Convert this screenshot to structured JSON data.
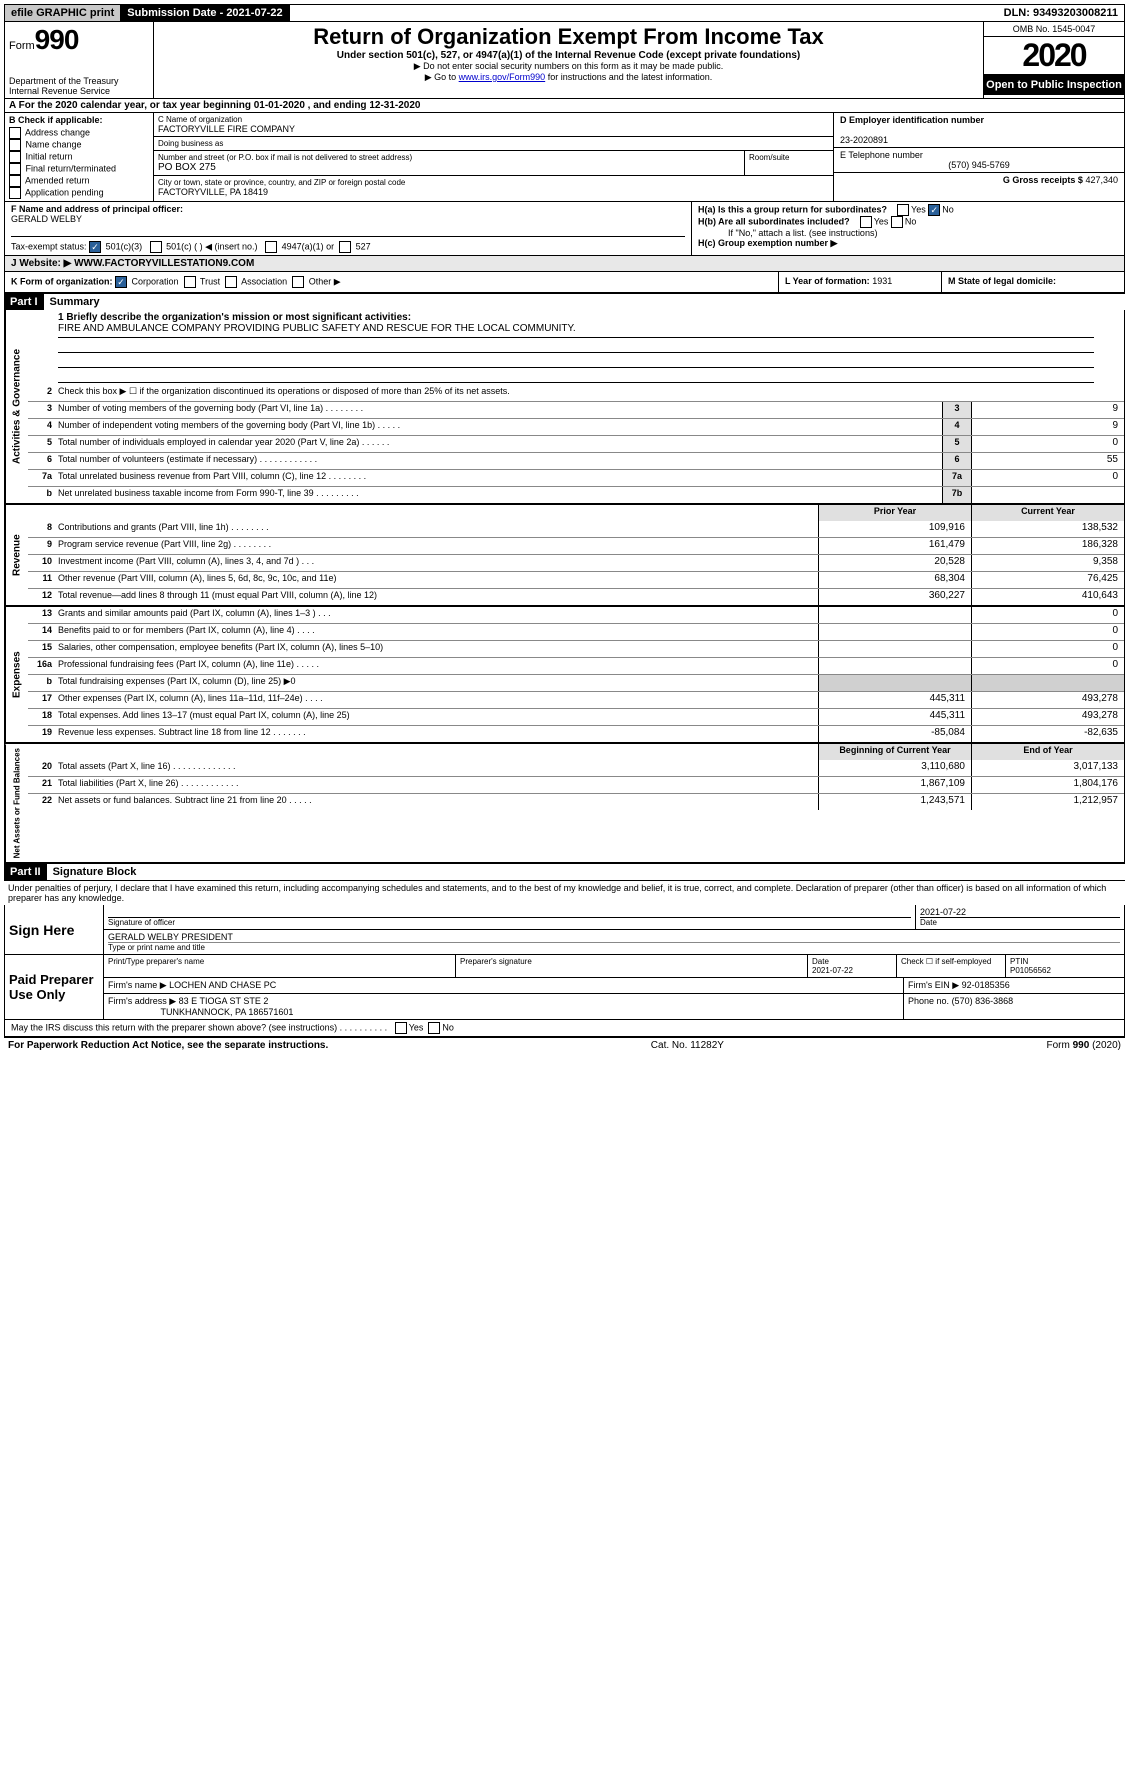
{
  "topbar": {
    "efile": "efile GRAPHIC print",
    "submission_label": "Submission Date - 2021-07-22",
    "dln": "DLN: 93493203008211"
  },
  "header": {
    "form_prefix": "Form",
    "form_number": "990",
    "dept": "Department of the Treasury\nInternal Revenue Service",
    "title": "Return of Organization Exempt From Income Tax",
    "subtitle": "Under section 501(c), 527, or 4947(a)(1) of the Internal Revenue Code (except private foundations)",
    "note1": "▶ Do not enter social security numbers on this form as it may be made public.",
    "note2_pre": "▶ Go to ",
    "note2_link": "www.irs.gov/Form990",
    "note2_post": " for instructions and the latest information.",
    "omb": "OMB No. 1545-0047",
    "year": "2020",
    "open": "Open to Public Inspection"
  },
  "line_a": "A For the 2020 calendar year, or tax year beginning 01-01-2020   , and ending 12-31-2020",
  "col_b": {
    "title": "B Check if applicable:",
    "items": [
      "Address change",
      "Name change",
      "Initial return",
      "Final return/terminated",
      "Amended return",
      "Application pending"
    ]
  },
  "col_c": {
    "name_label": "C Name of organization",
    "name": "FACTORYVILLE FIRE COMPANY",
    "dba_label": "Doing business as",
    "dba": "",
    "addr_label": "Number and street (or P.O. box if mail is not delivered to street address)",
    "room_label": "Room/suite",
    "addr": "PO BOX 275",
    "city_label": "City or town, state or province, country, and ZIP or foreign postal code",
    "city": "FACTORYVILLE, PA  18419"
  },
  "col_de": {
    "d_label": "D Employer identification number",
    "ein": "23-2020891",
    "e_label": "E Telephone number",
    "phone": "(570) 945-5769",
    "g_label": "G Gross receipts $",
    "gross": "427,340"
  },
  "row_f": {
    "label": "F Name and address of principal officer:",
    "name": "GERALD WELBY"
  },
  "row_h": {
    "a": "H(a)  Is this a group return for subordinates?",
    "b": "H(b)  Are all subordinates included?",
    "b_note": "If \"No,\" attach a list. (see instructions)",
    "c": "H(c)  Group exemption number ▶"
  },
  "row_i": {
    "label": "Tax-exempt status:",
    "opts": [
      "501(c)(3)",
      "501(c) (   ) ◀ (insert no.)",
      "4947(a)(1) or",
      "527"
    ]
  },
  "row_j": {
    "label": "J   Website: ▶",
    "value": "WWW.FACTORYVILLESTATION9.COM"
  },
  "row_k": "K Form of organization:",
  "row_k_opts": [
    "Corporation",
    "Trust",
    "Association",
    "Other ▶"
  ],
  "row_l": {
    "label": "L Year of formation:",
    "value": "1931"
  },
  "row_m": "M State of legal domicile:",
  "part1": {
    "num": "Part I",
    "title": "Summary",
    "mission_label": "1   Briefly describe the organization's mission or most significant activities:",
    "mission": "FIRE AND AMBULANCE COMPANY PROVIDING PUBLIC SAFETY AND RESCUE FOR THE LOCAL COMMUNITY."
  },
  "gov_lines": [
    {
      "n": "2",
      "d": "Check this box ▶ ☐  if the organization discontinued its operations or disposed of more than 25% of its net assets."
    },
    {
      "n": "3",
      "d": "Number of voting members of the governing body (Part VI, line 1a)  .   .   .   .   .   .   .   .",
      "box": "3",
      "v": "9"
    },
    {
      "n": "4",
      "d": "Number of independent voting members of the governing body (Part VI, line 1b)  .   .   .   .   .",
      "box": "4",
      "v": "9"
    },
    {
      "n": "5",
      "d": "Total number of individuals employed in calendar year 2020 (Part V, line 2a)  .   .   .   .   .   .",
      "box": "5",
      "v": "0"
    },
    {
      "n": "6",
      "d": "Total number of volunteers (estimate if necessary)  .   .   .   .   .   .   .   .   .   .   .   .",
      "box": "6",
      "v": "55"
    },
    {
      "n": "7a",
      "d": "Total unrelated business revenue from Part VIII, column (C), line 12  .   .   .   .   .   .   .   .",
      "box": "7a",
      "v": "0"
    },
    {
      "n": "b",
      "d": "Net unrelated business taxable income from Form 990-T, line 39  .   .   .   .   .   .   .   .   .",
      "box": "7b",
      "v": ""
    }
  ],
  "year_header": {
    "prior": "Prior Year",
    "current": "Current Year"
  },
  "revenue": [
    {
      "n": "8",
      "d": "Contributions and grants (Part VIII, line 1h)  .   .   .   .   .   .   .   .",
      "p": "109,916",
      "c": "138,532"
    },
    {
      "n": "9",
      "d": "Program service revenue (Part VIII, line 2g)  .   .   .   .   .   .   .   .",
      "p": "161,479",
      "c": "186,328"
    },
    {
      "n": "10",
      "d": "Investment income (Part VIII, column (A), lines 3, 4, and 7d )  .   .   .",
      "p": "20,528",
      "c": "9,358"
    },
    {
      "n": "11",
      "d": "Other revenue (Part VIII, column (A), lines 5, 6d, 8c, 9c, 10c, and 11e)",
      "p": "68,304",
      "c": "76,425"
    },
    {
      "n": "12",
      "d": "Total revenue—add lines 8 through 11 (must equal Part VIII, column (A), line 12)",
      "p": "360,227",
      "c": "410,643"
    }
  ],
  "expenses": [
    {
      "n": "13",
      "d": "Grants and similar amounts paid (Part IX, column (A), lines 1–3 )  .   .   .",
      "p": "",
      "c": "0"
    },
    {
      "n": "14",
      "d": "Benefits paid to or for members (Part IX, column (A), line 4)  .   .   .   .",
      "p": "",
      "c": "0"
    },
    {
      "n": "15",
      "d": "Salaries, other compensation, employee benefits (Part IX, column (A), lines 5–10)",
      "p": "",
      "c": "0"
    },
    {
      "n": "16a",
      "d": "Professional fundraising fees (Part IX, column (A), line 11e)  .   .   .   .   .",
      "p": "",
      "c": "0"
    },
    {
      "n": "b",
      "d": "Total fundraising expenses (Part IX, column (D), line 25) ▶0",
      "p": "grey",
      "c": "grey"
    },
    {
      "n": "17",
      "d": "Other expenses (Part IX, column (A), lines 11a–11d, 11f–24e)  .   .   .   .",
      "p": "445,311",
      "c": "493,278"
    },
    {
      "n": "18",
      "d": "Total expenses. Add lines 13–17 (must equal Part IX, column (A), line 25)",
      "p": "445,311",
      "c": "493,278"
    },
    {
      "n": "19",
      "d": "Revenue less expenses. Subtract line 18 from line 12  .   .   .   .   .   .   .",
      "p": "-85,084",
      "c": "-82,635"
    }
  ],
  "net_header": {
    "prior": "Beginning of Current Year",
    "current": "End of Year"
  },
  "netassets": [
    {
      "n": "20",
      "d": "Total assets (Part X, line 16)  .   .   .   .   .   .   .   .   .   .   .   .   .",
      "p": "3,110,680",
      "c": "3,017,133"
    },
    {
      "n": "21",
      "d": "Total liabilities (Part X, line 26)  .   .   .   .   .   .   .   .   .   .   .   .",
      "p": "1,867,109",
      "c": "1,804,176"
    },
    {
      "n": "22",
      "d": "Net assets or fund balances. Subtract line 21 from line 20  .   .   .   .   .",
      "p": "1,243,571",
      "c": "1,212,957"
    }
  ],
  "part2": {
    "num": "Part II",
    "title": "Signature Block"
  },
  "perjury": "Under penalties of perjury, I declare that I have examined this return, including accompanying schedules and statements, and to the best of my knowledge and belief, it is true, correct, and complete. Declaration of preparer (other than officer) is based on all information of which preparer has any knowledge.",
  "sign": {
    "label": "Sign Here",
    "sig_officer": "Signature of officer",
    "date": "2021-07-22",
    "date_label": "Date",
    "name": "GERALD WELBY PRESIDENT",
    "name_label": "Type or print name and title"
  },
  "paid": {
    "label": "Paid Preparer Use Only",
    "h1": "Print/Type preparer's name",
    "h2": "Preparer's signature",
    "h3": "Date",
    "h3v": "2021-07-22",
    "h4": "Check ☐ if self-employed",
    "h5": "PTIN",
    "h5v": "P01056562",
    "firm_name_label": "Firm's name    ▶",
    "firm_name": "LOCHEN AND CHASE PC",
    "firm_ein_label": "Firm's EIN ▶",
    "firm_ein": "92-0185356",
    "firm_addr_label": "Firm's address ▶",
    "firm_addr1": "83 E TIOGA ST STE 2",
    "firm_addr2": "TUNKHANNOCK, PA  186571601",
    "phone_label": "Phone no.",
    "phone": "(570) 836-3868"
  },
  "discuss": "May the IRS discuss this return with the preparer shown above? (see instructions)   .   .   .   .   .   .   .   .   .   .",
  "footer": {
    "left": "For Paperwork Reduction Act Notice, see the separate instructions.",
    "mid": "Cat. No. 11282Y",
    "right": "Form 990 (2020)"
  },
  "vlabels": {
    "gov": "Activities & Governance",
    "rev": "Revenue",
    "exp": "Expenses",
    "net": "Net Assets or Fund Balances"
  }
}
